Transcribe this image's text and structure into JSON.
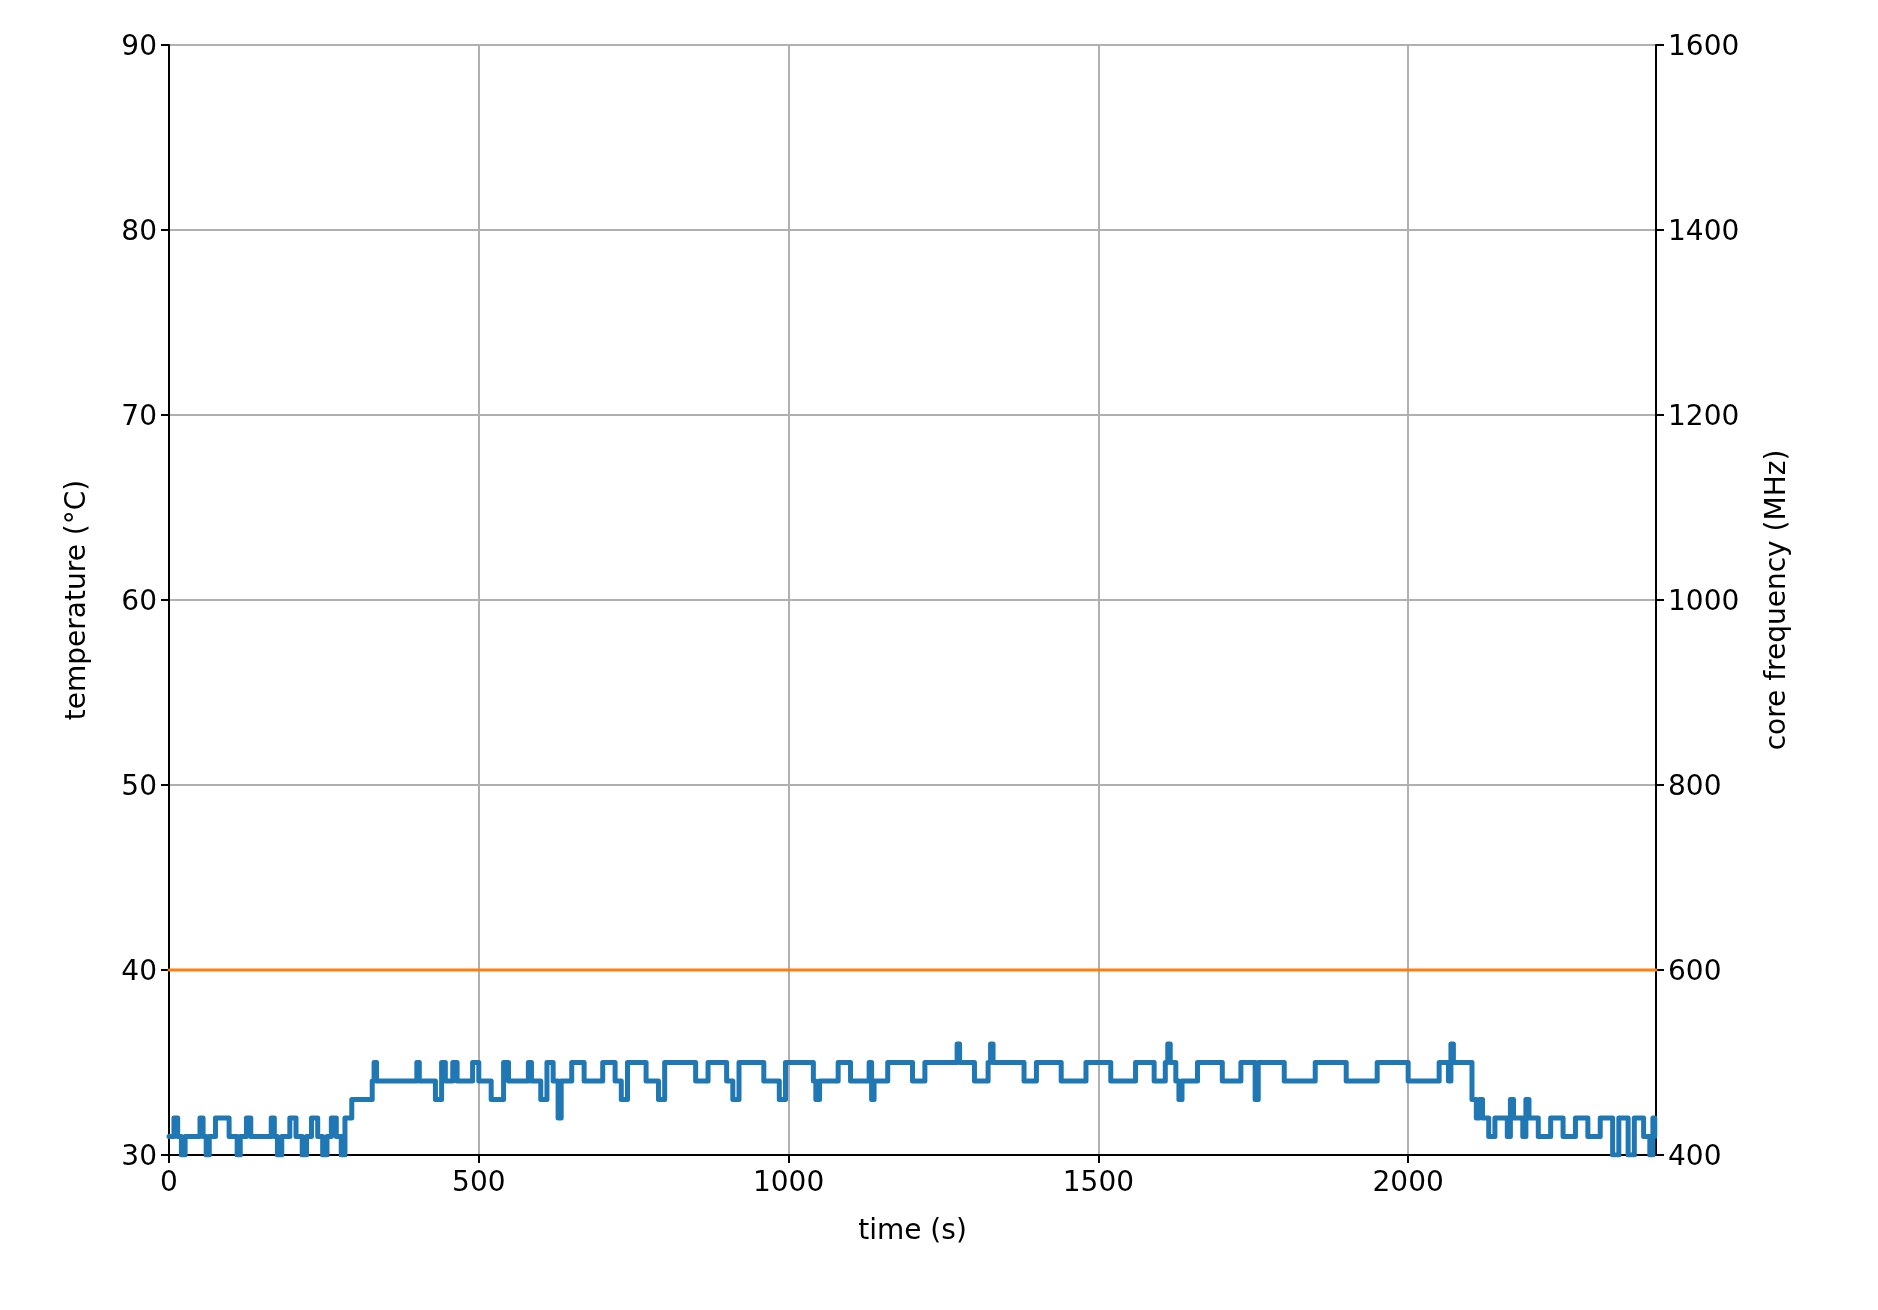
{
  "chart_data": {
    "type": "step",
    "xlabel": "time (s)",
    "ylabel": "temperature (°C)",
    "y2label": "core frequency (MHz)",
    "xlim": [
      0,
      2400
    ],
    "xticks": [
      0,
      500,
      1000,
      1500,
      2000
    ],
    "ylim": [
      30,
      90
    ],
    "yticks": [
      30,
      40,
      50,
      60,
      70,
      80,
      90
    ],
    "y2lim": [
      400,
      1600
    ],
    "y2ticks": [
      400,
      600,
      800,
      1000,
      1200,
      1400,
      1600
    ],
    "grid": true,
    "marker": "none",
    "line_style": "solid",
    "series": [
      {
        "color": "#1f77b4",
        "x": [
          0,
          8,
          14,
          20,
          26,
          45,
          50,
          55,
          60,
          65,
          75,
          92,
          97,
          110,
          115,
          125,
          132,
          160,
          165,
          170,
          175,
          182,
          195,
          205,
          215,
          222,
          230,
          240,
          248,
          255,
          262,
          270,
          278,
          284,
          290,
          295,
          320,
          328,
          331,
          335,
          395,
          400,
          404,
          430,
          440,
          446,
          458,
          465,
          490,
          500,
          520,
          540,
          548,
          580,
          585,
          600,
          610,
          620,
          628,
          633,
          650,
          670,
          700,
          720,
          730,
          740,
          770,
          790,
          800,
          850,
          870,
          900,
          910,
          920,
          960,
          985,
          995,
          1040,
          1044,
          1050,
          1080,
          1100,
          1130,
          1134,
          1138,
          1160,
          1200,
          1220,
          1268,
          1272,
          1276,
          1300,
          1322,
          1326,
          1330,
          1380,
          1400,
          1440,
          1480,
          1520,
          1560,
          1590,
          1608,
          1612,
          1616,
          1625,
          1630,
          1635,
          1660,
          1700,
          1730,
          1753,
          1758,
          1800,
          1850,
          1900,
          1950,
          2000,
          2050,
          2065,
          2069,
          2073,
          2100,
          2103,
          2110,
          2115,
          2120,
          2130,
          2140,
          2160,
          2165,
          2170,
          2185,
          2190,
          2195,
          2210,
          2230,
          2250,
          2270,
          2290,
          2310,
          2330,
          2340,
          2355,
          2365,
          2380,
          2390,
          2395,
          2398
        ],
        "values": [
          31,
          32,
          31,
          30,
          31,
          31,
          32,
          31,
          30,
          31,
          32,
          32,
          31,
          30,
          31,
          32,
          31,
          31,
          32,
          31,
          30,
          31,
          32,
          31,
          30,
          31,
          32,
          31,
          30,
          31,
          32,
          31,
          30,
          32,
          32,
          33,
          33,
          34,
          35,
          34,
          34,
          35,
          34,
          33,
          35,
          34,
          35,
          34,
          35,
          34,
          33,
          35,
          34,
          35,
          34,
          33,
          35,
          34,
          32,
          34,
          35,
          34,
          35,
          34,
          33,
          35,
          34,
          33,
          35,
          34,
          35,
          34,
          33,
          35,
          34,
          33,
          35,
          34,
          33,
          34,
          35,
          34,
          35,
          33,
          34,
          35,
          34,
          35,
          35,
          36,
          35,
          34,
          35,
          36,
          35,
          34,
          35,
          34,
          35,
          34,
          35,
          34,
          35,
          36,
          35,
          34,
          33,
          34,
          35,
          34,
          35,
          33,
          35,
          34,
          35,
          34,
          35,
          34,
          35,
          34,
          36,
          35,
          35,
          33,
          32,
          33,
          32,
          31,
          32,
          31,
          33,
          32,
          31,
          33,
          32,
          31,
          32,
          31,
          32,
          31,
          32,
          30,
          32,
          30,
          32,
          31,
          30,
          32,
          31
        ]
      },
      {
        "color": "#ff7f0e",
        "axis": "y2",
        "x": [
          0,
          2400
        ],
        "values": [
          600,
          600
        ]
      }
    ]
  }
}
